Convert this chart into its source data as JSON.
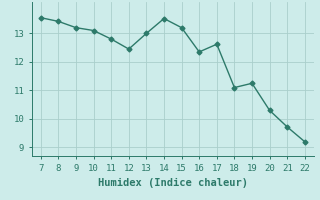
{
  "x": [
    7,
    8,
    9,
    10,
    11,
    12,
    13,
    14,
    15,
    16,
    17,
    18,
    19,
    20,
    21,
    22
  ],
  "y": [
    13.55,
    13.42,
    13.2,
    13.1,
    12.8,
    12.45,
    13.0,
    13.52,
    13.2,
    12.35,
    12.62,
    11.1,
    11.25,
    10.3,
    9.72,
    9.2
  ],
  "line_color": "#2d7a6a",
  "marker": "D",
  "marker_size": 2.5,
  "linewidth": 1.0,
  "xlabel": "Humidex (Indice chaleur)",
  "xlim": [
    6.5,
    22.5
  ],
  "ylim": [
    8.7,
    14.1
  ],
  "yticks": [
    9,
    10,
    11,
    12,
    13
  ],
  "xticks": [
    7,
    8,
    9,
    10,
    11,
    12,
    13,
    14,
    15,
    16,
    17,
    18,
    19,
    20,
    21,
    22
  ],
  "bg_color": "#cdecea",
  "grid_color": "#aacfcc",
  "tick_color": "#2d7a6a",
  "label_color": "#2d7a6a",
  "xlabel_fontsize": 7.5,
  "tick_fontsize": 6.5
}
